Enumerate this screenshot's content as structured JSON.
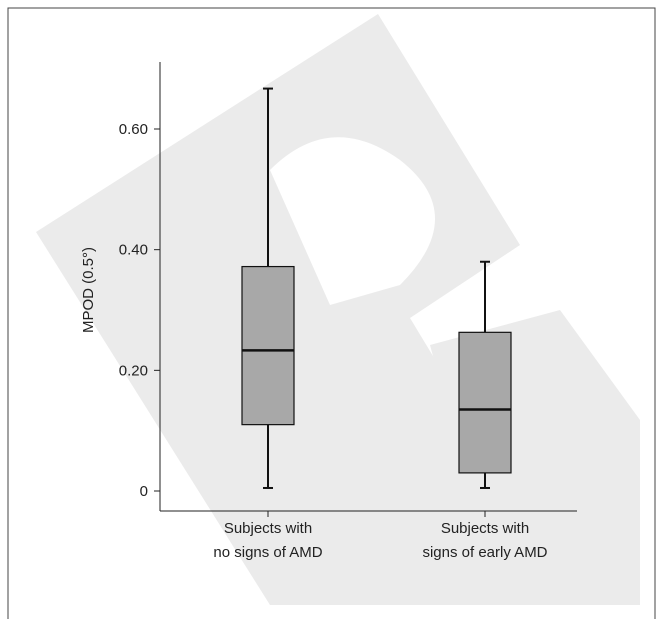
{
  "chart_data": {
    "type": "box",
    "title": "",
    "xlabel": "",
    "ylabel": "MPOD (0.5°)",
    "ylim": [
      -0.03,
      0.7
    ],
    "yticks": [
      {
        "value": 0,
        "label": "0"
      },
      {
        "value": 0.2,
        "label": "0.20"
      },
      {
        "value": 0.4,
        "label": "0.40"
      },
      {
        "value": 0.6,
        "label": "0.60"
      }
    ],
    "grid": false,
    "legend": "none",
    "box_color": "#a8a8a8",
    "categories": [
      {
        "line1": "Subjects with",
        "line2": "no signs of AMD"
      },
      {
        "line1": "Subjects with",
        "line2": "signs of early AMD"
      }
    ],
    "boxes": [
      {
        "min": 0.005,
        "q1": 0.11,
        "median": 0.233,
        "q3": 0.372,
        "max": 0.667
      },
      {
        "min": 0.005,
        "q1": 0.03,
        "median": 0.135,
        "q3": 0.263,
        "max": 0.38
      }
    ]
  }
}
